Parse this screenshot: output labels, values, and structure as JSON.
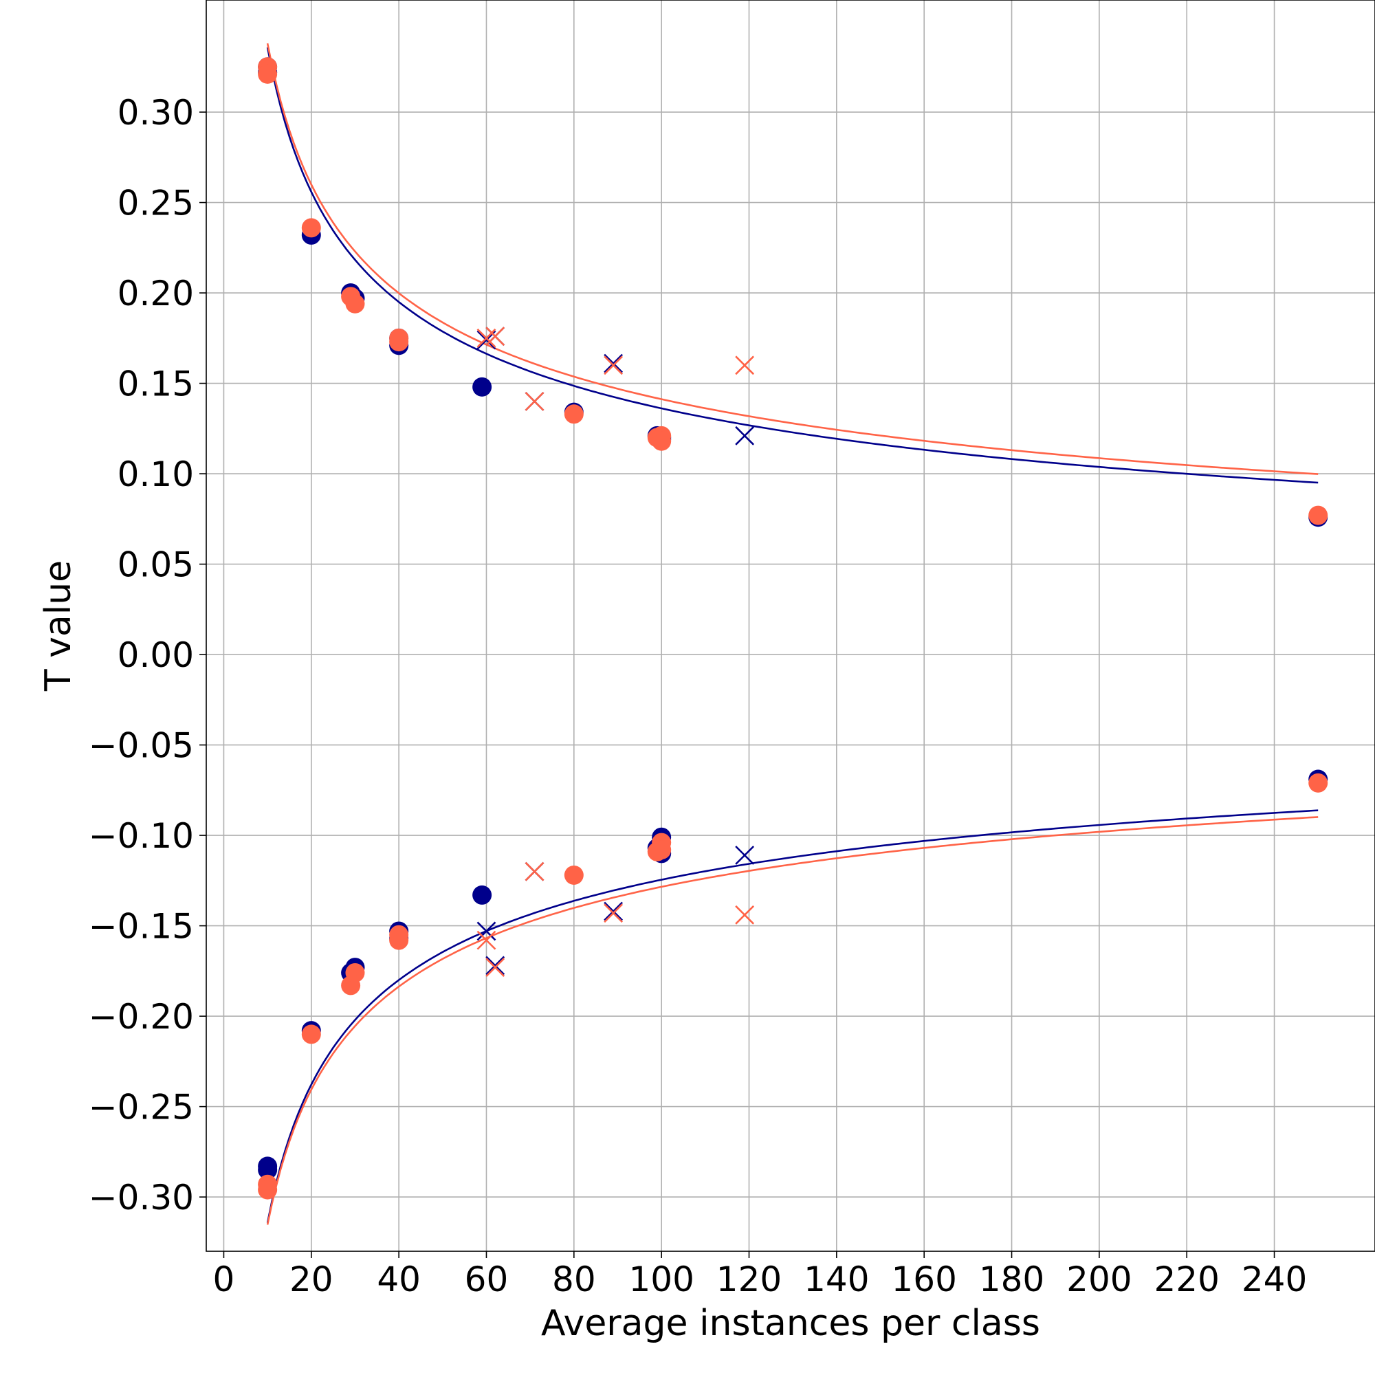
{
  "chart_data": {
    "type": "scatter",
    "title": "",
    "xlabel": "Average instances per class",
    "ylabel": "T value",
    "xlim": [
      -4,
      263
    ],
    "ylim": [
      -0.33,
      0.362
    ],
    "xticks": [
      0,
      20,
      40,
      60,
      80,
      100,
      120,
      140,
      160,
      180,
      200,
      220,
      240
    ],
    "xtick_labels": [
      "0",
      "20",
      "40",
      "60",
      "80",
      "100",
      "120",
      "140",
      "160",
      "180",
      "200",
      "220",
      "240"
    ],
    "yticks": [
      0.3,
      0.25,
      0.2,
      0.15,
      0.1,
      0.05,
      0.0,
      -0.05,
      -0.1,
      -0.15,
      -0.2,
      -0.25,
      -0.3
    ],
    "ytick_labels": [
      "0.30",
      "0.25",
      "0.20",
      "0.15",
      "0.10",
      "0.05",
      "0.00",
      "−0.05",
      "−0.10",
      "−0.15",
      "−0.20",
      "−0.25",
      "−0.30"
    ],
    "grid": true,
    "colors": {
      "navy": "#00008b",
      "coral": "#ff6347"
    },
    "series": [
      {
        "name": "navy-circles-upper",
        "color": "#00008b",
        "marker": "circle",
        "x": [
          10,
          10,
          20,
          29,
          30,
          40,
          40,
          59,
          80,
          99,
          100,
          100,
          250
        ],
        "y": [
          0.325,
          0.322,
          0.232,
          0.2,
          0.197,
          0.171,
          0.175,
          0.148,
          0.134,
          0.121,
          0.12,
          0.119,
          0.076
        ]
      },
      {
        "name": "coral-circles-upper",
        "color": "#ff6347",
        "marker": "circle",
        "x": [
          10,
          10,
          20,
          29,
          30,
          40,
          40,
          80,
          99,
          100,
          100,
          250
        ],
        "y": [
          0.325,
          0.321,
          0.236,
          0.198,
          0.194,
          0.173,
          0.175,
          0.133,
          0.12,
          0.121,
          0.118,
          0.077
        ]
      },
      {
        "name": "navy-circles-lower",
        "color": "#00008b",
        "marker": "circle",
        "x": [
          10,
          10,
          20,
          29,
          30,
          40,
          40,
          59,
          99,
          100,
          100,
          250
        ],
        "y": [
          -0.283,
          -0.285,
          -0.208,
          -0.176,
          -0.173,
          -0.153,
          -0.157,
          -0.133,
          -0.107,
          -0.101,
          -0.11,
          -0.069
        ]
      },
      {
        "name": "coral-circles-lower",
        "color": "#ff6347",
        "marker": "circle",
        "x": [
          10,
          10,
          20,
          29,
          30,
          40,
          40,
          80,
          99,
          100,
          100,
          250
        ],
        "y": [
          -0.293,
          -0.296,
          -0.21,
          -0.183,
          -0.176,
          -0.158,
          -0.155,
          -0.122,
          -0.109,
          -0.104,
          -0.108,
          -0.071
        ]
      },
      {
        "name": "navy-crosses",
        "color": "#00008b",
        "marker": "x",
        "x": [
          60,
          62,
          71,
          89,
          119,
          60,
          62,
          71,
          89,
          119
        ],
        "y": [
          0.174,
          0.176,
          0.14,
          0.161,
          0.121,
          -0.153,
          -0.172,
          -0.12,
          -0.142,
          -0.111
        ]
      },
      {
        "name": "coral-crosses",
        "color": "#ff6347",
        "marker": "x",
        "x": [
          60,
          62,
          71,
          89,
          119,
          60,
          62,
          71,
          89,
          119
        ],
        "y": [
          0.175,
          0.176,
          0.14,
          0.16,
          0.16,
          -0.158,
          -0.173,
          -0.12,
          -0.143,
          -0.144
        ]
      },
      {
        "name": "navy-fit-upper",
        "color": "#00008b",
        "marker": "line",
        "x_range": [
          10,
          250
        ],
        "a": 0.828,
        "b": -0.392
      },
      {
        "name": "coral-fit-upper",
        "color": "#ff6347",
        "marker": "line",
        "x_range": [
          10,
          250
        ],
        "a": 0.809,
        "b": -0.379
      },
      {
        "name": "navy-fit-lower",
        "color": "#00008b",
        "marker": "line",
        "x_range": [
          10,
          250
        ],
        "a": -0.793,
        "b": -0.402
      },
      {
        "name": "coral-fit-lower",
        "color": "#ff6347",
        "marker": "line",
        "x_range": [
          10,
          250
        ],
        "a": -0.774,
        "b": -0.39
      }
    ]
  }
}
